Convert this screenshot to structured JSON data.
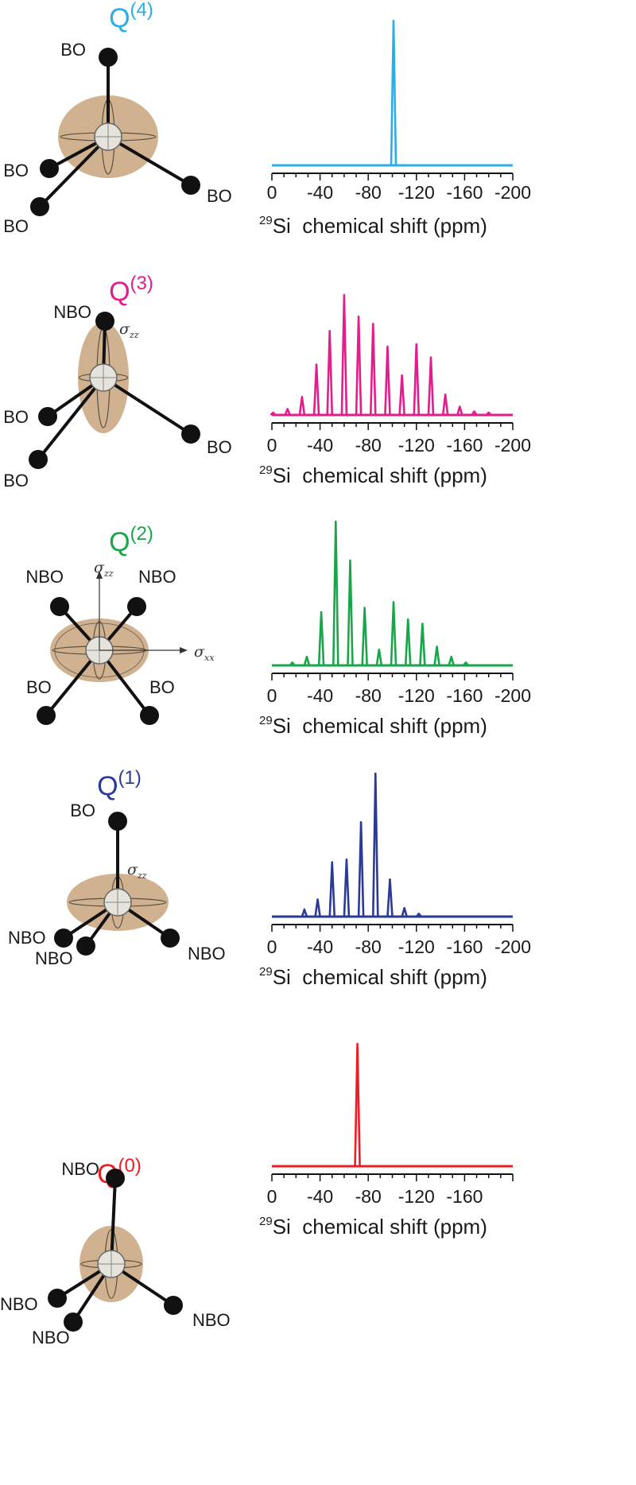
{
  "panels": [
    {
      "label_base": "Q",
      "label_sup": "(4)",
      "color": "#29aee6",
      "molecule": {
        "center": "Si",
        "ligands": [
          {
            "label": "BO"
          },
          {
            "label": "BO"
          },
          {
            "label": "BO"
          },
          {
            "label": "BO"
          }
        ],
        "sigma_labels": []
      }
    },
    {
      "label_base": "Q",
      "label_sup": "(3)",
      "color": "#e21d8c",
      "molecule": {
        "center": "Si",
        "ligands": [
          {
            "label": "NBO"
          },
          {
            "label": "BO"
          },
          {
            "label": "BO"
          },
          {
            "label": "BO"
          }
        ],
        "sigma_labels": [
          {
            "base": "σ",
            "sub": "zz"
          }
        ]
      }
    },
    {
      "label_base": "Q",
      "label_sup": "(2)",
      "color": "#19a64a",
      "molecule": {
        "center": "Si",
        "ligands": [
          {
            "label": "NBO"
          },
          {
            "label": "NBO"
          },
          {
            "label": "BO"
          },
          {
            "label": "BO"
          }
        ],
        "sigma_labels": [
          {
            "base": "σ",
            "sub": "zz"
          },
          {
            "base": "σ",
            "sub": "xx"
          }
        ]
      }
    },
    {
      "label_base": "Q",
      "label_sup": "(1)",
      "color": "#2a3a96",
      "molecule": {
        "center": "Si",
        "ligands": [
          {
            "label": "BO"
          },
          {
            "label": "NBO"
          },
          {
            "label": "NBO"
          },
          {
            "label": "NBO"
          }
        ],
        "sigma_labels": [
          {
            "base": "σ",
            "sub": "zz"
          }
        ]
      }
    },
    {
      "label_base": "Q",
      "label_sup": "(0)",
      "color": "#ee1c25",
      "molecule": {
        "center": "Si",
        "ligands": [
          {
            "label": "NBO"
          },
          {
            "label": "NBO"
          },
          {
            "label": "NBO"
          },
          {
            "label": "NBO"
          }
        ],
        "sigma_labels": []
      }
    }
  ],
  "chart_data": [
    {
      "type": "line",
      "series": [
        {
          "x": [
            -101
          ],
          "y": [
            1.0
          ]
        }
      ],
      "xlim": [
        0,
        -200
      ],
      "xticks": [
        "0",
        "-40",
        "-80",
        "-120",
        "-160",
        "-200"
      ],
      "xlabel": {
        "sup": "29",
        "text": "Si  chemical shift (ppm)"
      }
    },
    {
      "type": "line",
      "series": [
        {
          "x": [
            -1,
            -13,
            -25,
            -37,
            -48,
            -60,
            -72,
            -84,
            -96,
            -108,
            -120,
            -132,
            -144,
            -156,
            -168,
            -180
          ],
          "y": [
            0.02,
            0.05,
            0.15,
            0.42,
            0.7,
            1.0,
            0.82,
            0.76,
            0.57,
            0.33,
            0.59,
            0.48,
            0.17,
            0.07,
            0.03,
            0.02
          ]
        }
      ],
      "xlim": [
        0,
        -200
      ],
      "xticks": [
        "0",
        "-40",
        "-80",
        "-120",
        "-160",
        "-200"
      ],
      "xlabel": {
        "sup": "29",
        "text": "Si  chemical shift (ppm)"
      }
    },
    {
      "type": "line",
      "series": [
        {
          "x": [
            -17,
            -29,
            -41,
            -53,
            -65,
            -77,
            -89,
            -101,
            -113,
            -125,
            -137,
            -149,
            -161
          ],
          "y": [
            0.02,
            0.06,
            0.37,
            1.0,
            0.73,
            0.4,
            0.11,
            0.44,
            0.32,
            0.29,
            0.13,
            0.06,
            0.02
          ]
        }
      ],
      "xlim": [
        0,
        -200
      ],
      "xticks": [
        "0",
        "-40",
        "-80",
        "-120",
        "-160",
        "-200"
      ],
      "xlabel": {
        "sup": "29",
        "text": "Si  chemical shift (ppm)"
      }
    },
    {
      "type": "line",
      "series": [
        {
          "x": [
            -27,
            -38,
            -50,
            -62,
            -74,
            -86,
            -98,
            -110,
            -122
          ],
          "y": [
            0.05,
            0.12,
            0.38,
            0.4,
            0.66,
            1.0,
            0.26,
            0.06,
            0.02
          ]
        }
      ],
      "xlim": [
        0,
        -200
      ],
      "xticks": [
        "0",
        "-40",
        "-80",
        "-120",
        "-160",
        "-200"
      ],
      "xlabel": {
        "sup": "29",
        "text": "Si  chemical shift (ppm)"
      }
    },
    {
      "type": "line",
      "series": [
        {
          "x": [
            -71
          ],
          "y": [
            1.0
          ]
        }
      ],
      "xlim": [
        0,
        -200
      ],
      "xticks": [
        "0",
        "-40",
        "-80",
        "-120",
        "-160"
      ],
      "xlabel": {
        "sup": "29",
        "text": "Si  chemical shift (ppm)"
      }
    }
  ]
}
